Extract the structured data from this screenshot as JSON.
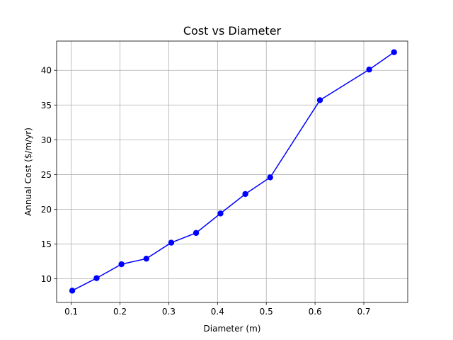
{
  "chart_data": {
    "type": "line",
    "title": "Cost vs Diameter",
    "xlabel": "Diameter (m)",
    "ylabel": "Annual Cost ($/m/yr)",
    "xlim": [
      0.07,
      0.79
    ],
    "ylim": [
      6.6,
      44.2
    ],
    "xticks": [
      0.1,
      0.2,
      0.3,
      0.4,
      0.5,
      0.6,
      0.7
    ],
    "xtick_labels": [
      "0.1",
      "0.2",
      "0.3",
      "0.4",
      "0.5",
      "0.6",
      "0.7"
    ],
    "yticks": [
      10,
      15,
      20,
      25,
      30,
      35,
      40
    ],
    "ytick_labels": [
      "10",
      "15",
      "20",
      "25",
      "30",
      "35",
      "40"
    ],
    "grid": true,
    "series": [
      {
        "color": "#0000ff",
        "marker": "circle",
        "x": [
          0.102,
          0.152,
          0.203,
          0.254,
          0.305,
          0.356,
          0.406,
          0.457,
          0.508,
          0.61,
          0.711,
          0.762
        ],
        "y": [
          8.3,
          10.1,
          12.1,
          12.9,
          15.2,
          16.6,
          19.4,
          22.2,
          24.6,
          35.7,
          40.1,
          42.6
        ]
      }
    ]
  }
}
